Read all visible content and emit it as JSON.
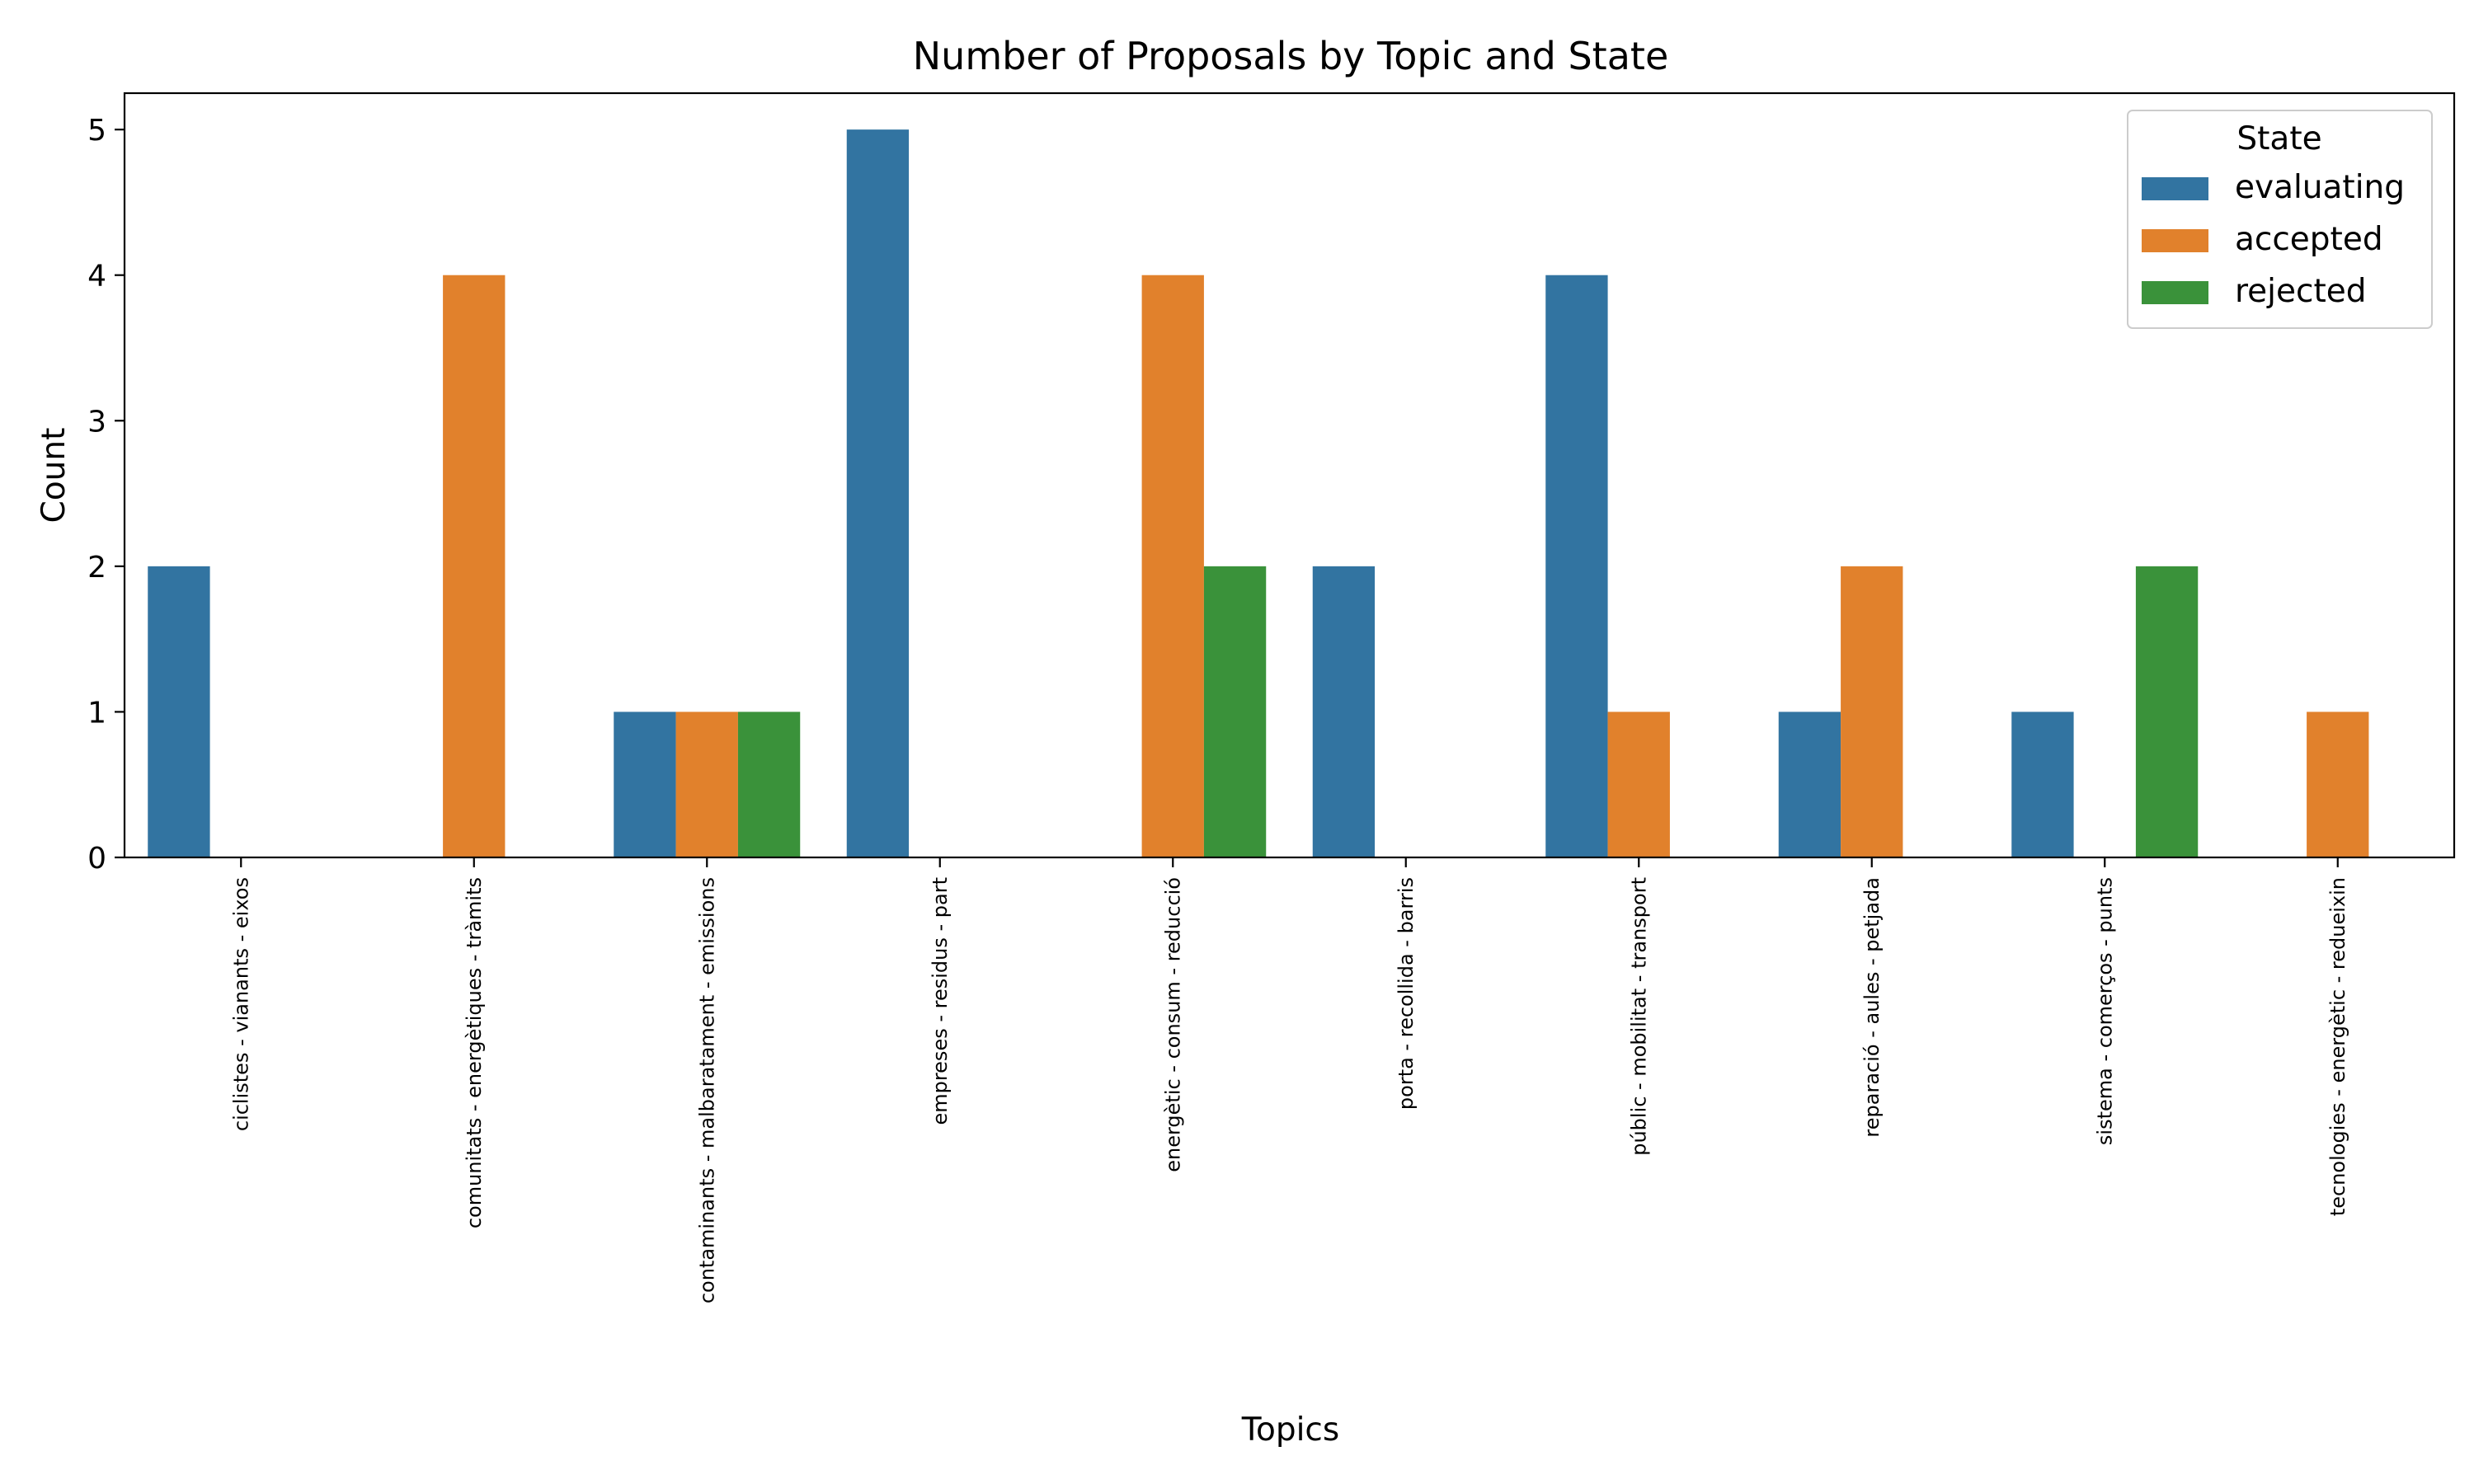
{
  "chart_data": {
    "type": "bar",
    "title": "Number of Proposals by Topic and State",
    "xlabel": "Topics",
    "ylabel": "Count",
    "ylim": [
      0,
      5.25
    ],
    "yticks": [
      0,
      1,
      2,
      3,
      4,
      5
    ],
    "grid": false,
    "legend": {
      "title": "State",
      "placement": "top-right"
    },
    "categories": [
      "ciclistes - vianants - eixos",
      "comunitats - energètiques - tràmits",
      "contaminants - malbaratament - emissions",
      "empreses - residus - part",
      "energètic - consum - reducció",
      "porta - recollida - barris",
      "públic - mobilitat - transport",
      "reparació - aules - petjada",
      "sistema - comerços - punts",
      "tecnologies - energètic - redueixin"
    ],
    "series": [
      {
        "name": "evaluating",
        "color": "#3274a1",
        "values": [
          2,
          0,
          1,
          5,
          0,
          2,
          4,
          1,
          1,
          0
        ]
      },
      {
        "name": "accepted",
        "color": "#e1812c",
        "values": [
          0,
          4,
          1,
          0,
          4,
          0,
          1,
          2,
          0,
          1
        ]
      },
      {
        "name": "rejected",
        "color": "#3a923a",
        "values": [
          0,
          0,
          1,
          0,
          2,
          0,
          0,
          0,
          2,
          0
        ]
      }
    ]
  }
}
